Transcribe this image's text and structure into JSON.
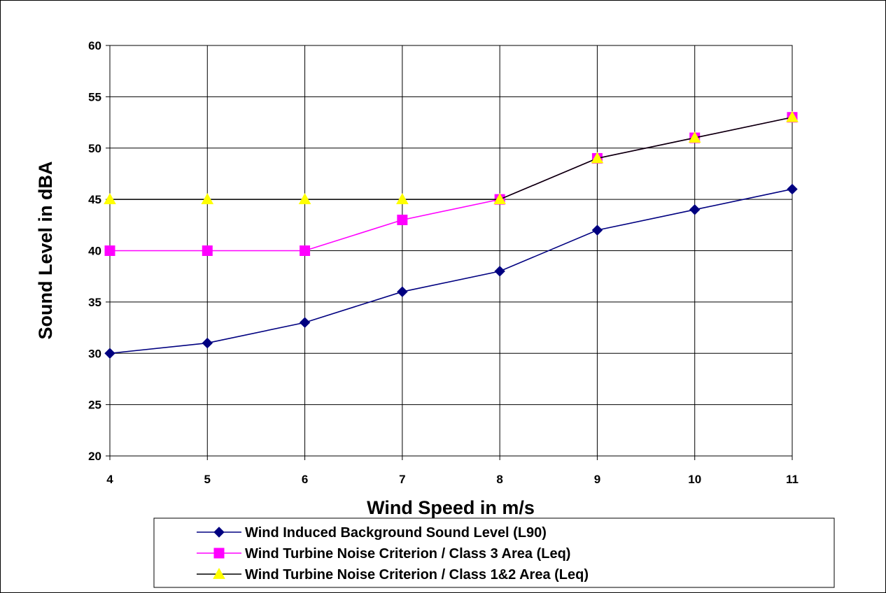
{
  "chart_data": {
    "type": "line",
    "title": "",
    "xlabel": "Wind Speed in m/s",
    "ylabel": "Sound Level in dBA",
    "x": [
      4,
      5,
      6,
      7,
      8,
      9,
      10,
      11
    ],
    "xlim": [
      4,
      11
    ],
    "ylim": [
      20,
      60
    ],
    "y_ticks": [
      20,
      25,
      30,
      35,
      40,
      45,
      50,
      55,
      60
    ],
    "x_ticks": [
      4,
      5,
      6,
      7,
      8,
      9,
      10,
      11
    ],
    "grid": true,
    "legend_position": "bottom",
    "series": [
      {
        "name": "Wind Induced Background Sound Level (L90)",
        "values": [
          30,
          31,
          33,
          36,
          38,
          42,
          44,
          46
        ],
        "line_color": "#000080",
        "marker": "diamond",
        "marker_color": "#000080"
      },
      {
        "name": "Wind Turbine Noise Criterion / Class 3 Area (Leq)",
        "values": [
          40,
          40,
          40,
          43,
          45,
          49,
          51,
          53
        ],
        "line_color": "#FF00FF",
        "marker": "square",
        "marker_color": "#FF00FF"
      },
      {
        "name": "Wind Turbine Noise Criterion / Class 1&2 Area (Leq)",
        "values": [
          45,
          45,
          45,
          45,
          45,
          49,
          51,
          53
        ],
        "line_color": "#000000",
        "marker": "triangle",
        "marker_color": "#FFFF00"
      }
    ]
  }
}
